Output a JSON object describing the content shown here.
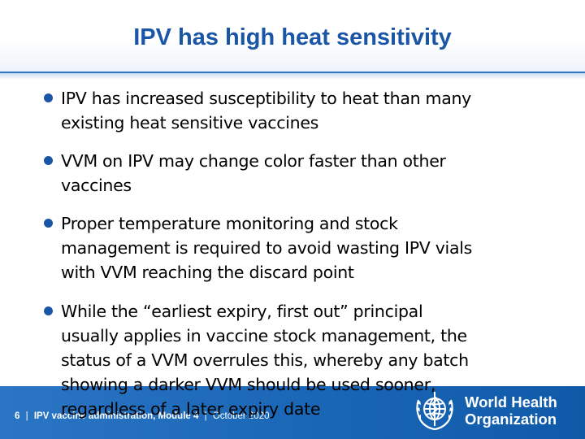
{
  "slide": {
    "title": "IPV has high heat sensitivity",
    "bullets": [
      {
        "lines": [
          "IPV has increased susceptibility to heat than many",
          "existing heat sensitive vaccines"
        ]
      },
      {
        "lines": [
          "VVM on IPV may change color faster than other",
          "vaccines"
        ]
      },
      {
        "lines": [
          "Proper temperature monitoring and stock",
          "management is required to avoid wasting IPV vials",
          "with VVM reaching the discard point"
        ]
      },
      {
        "lines": [
          "While the “earliest expiry, first out” principal",
          "usually applies in vaccine stock management, the",
          "status of a VVM overrules this, whereby any batch",
          "showing a darker VVM should be used sooner,",
          "regardless of a later expiry date"
        ]
      }
    ]
  },
  "footer": {
    "page_number": "6",
    "separator": "|",
    "module": "IPV vaccine administration, Module 4",
    "date": "October 2020",
    "logo_line1": "World Health",
    "logo_line2": "Organization"
  },
  "colors": {
    "title": "#1a55a6",
    "bullet": "#1a55a6",
    "footer": "#1a66b6"
  },
  "icons": [
    "bullet-dot-icon",
    "who-emblem-icon"
  ]
}
